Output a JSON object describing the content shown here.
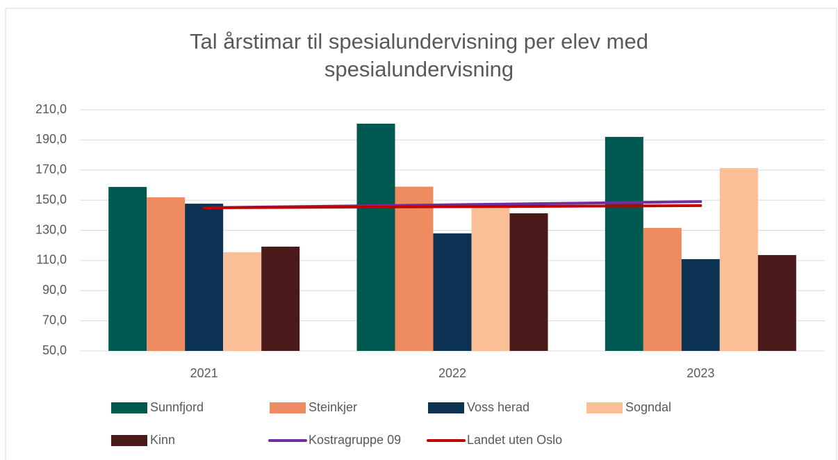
{
  "chart_data": {
    "type": "bar",
    "title": "Tal årstimar til spesialundervisning per elev med spesialundervisning",
    "categories": [
      "2021",
      "2022",
      "2023"
    ],
    "series": [
      {
        "name": "Sunnfjord",
        "color": "#005950",
        "values": [
          158.8,
          200.8,
          192
        ]
      },
      {
        "name": "Steinkjer",
        "color": "#ef8b60",
        "values": [
          151.9,
          159,
          131.6
        ]
      },
      {
        "name": "Voss herad",
        "color": "#0c3354",
        "values": [
          147.7,
          128,
          110.9
        ]
      },
      {
        "name": "Sogndal",
        "color": "#fbbf97",
        "values": [
          115.5,
          146,
          171.3
        ]
      },
      {
        "name": "Kinn",
        "color": "#4a1a1a",
        "values": [
          119.2,
          141.3,
          113.6
        ]
      },
      {
        "name": "Kostragruppe 09",
        "color": "#7030a0",
        "type": "line",
        "values": [
          145,
          147,
          149.1
        ]
      },
      {
        "name": "Landet uten Oslo",
        "color": "#c00000",
        "type": "line",
        "values": [
          145,
          145.7,
          146.4
        ]
      }
    ],
    "ylim": [
      50,
      210
    ],
    "yticks": [
      {
        "value": 50,
        "label": "50,0"
      },
      {
        "value": 70,
        "label": "70,0"
      },
      {
        "value": 90,
        "label": "90,0"
      },
      {
        "value": 110,
        "label": "110,0"
      },
      {
        "value": 130,
        "label": "130,0"
      },
      {
        "value": 150,
        "label": "150,0"
      },
      {
        "value": 170,
        "label": "170,0"
      },
      {
        "value": 190,
        "label": "190,0"
      },
      {
        "value": 210,
        "label": "210,0"
      }
    ],
    "grid": true
  }
}
